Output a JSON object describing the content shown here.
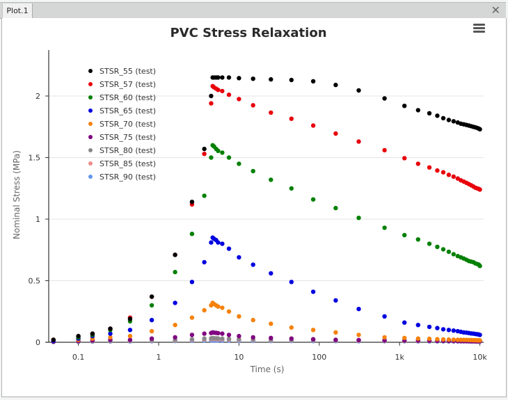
{
  "window": {
    "tab_label": "Plot.1",
    "close_icon": "close-icon",
    "menu_icon": "hamburger-menu-icon"
  },
  "chart_data": {
    "type": "scatter",
    "title": "PVC Stress Relaxation",
    "xlabel": "Time (s)",
    "ylabel": "Nominal Stress (MPa)",
    "xscale": "log",
    "xlim": [
      0.045,
      11000
    ],
    "ylim": [
      0,
      2.3
    ],
    "grid": "horizontal",
    "legend_position": "top-left",
    "x_ticks": [
      {
        "value": 0.1,
        "label": "0.1"
      },
      {
        "value": 1,
        "label": "1"
      },
      {
        "value": 10,
        "label": "10"
      },
      {
        "value": 100,
        "label": "100"
      },
      {
        "value": 1000,
        "label": "1k"
      },
      {
        "value": 10000,
        "label": "10k"
      }
    ],
    "y_ticks": [
      {
        "value": 0,
        "label": "0"
      },
      {
        "value": 0.5,
        "label": "0.5"
      },
      {
        "value": 1,
        "label": "1"
      },
      {
        "value": 1.5,
        "label": "1.5"
      },
      {
        "value": 2,
        "label": "2"
      }
    ],
    "x": [
      0.049,
      0.1,
      0.15,
      0.25,
      0.44,
      0.82,
      1.6,
      2.6,
      3.7,
      4.5,
      4.7,
      4.9,
      5.2,
      5.5,
      6.2,
      7.5,
      10,
      15,
      25,
      45,
      84,
      160,
      310,
      650,
      1150,
      1700,
      2350,
      2950,
      3500,
      4100,
      4700,
      5300,
      5800,
      6300,
      6800,
      7300,
      7800,
      8300,
      8800,
      9300,
      9700,
      10000
    ],
    "series": [
      {
        "name": "STSR_55 (test)",
        "color": "#000000",
        "values": [
          0.02,
          0.05,
          0.07,
          0.11,
          0.19,
          0.37,
          0.71,
          1.14,
          1.57,
          2.0,
          2.15,
          2.15,
          2.15,
          2.15,
          2.15,
          2.15,
          2.145,
          2.14,
          2.135,
          2.13,
          2.12,
          2.09,
          2.045,
          1.98,
          1.92,
          1.885,
          1.86,
          1.84,
          1.82,
          1.805,
          1.795,
          1.785,
          1.775,
          1.77,
          1.765,
          1.76,
          1.755,
          1.75,
          1.745,
          1.74,
          1.735,
          1.73
        ]
      },
      {
        "name": "STSR_57 (test)",
        "color": "#e8000b",
        "values": [
          0.02,
          0.05,
          0.07,
          0.11,
          0.2,
          0.37,
          0.71,
          1.12,
          1.53,
          1.94,
          2.08,
          2.07,
          2.06,
          2.05,
          2.04,
          2.01,
          1.975,
          1.925,
          1.865,
          1.815,
          1.76,
          1.695,
          1.63,
          1.56,
          1.495,
          1.45,
          1.42,
          1.395,
          1.38,
          1.36,
          1.345,
          1.33,
          1.315,
          1.305,
          1.295,
          1.285,
          1.275,
          1.265,
          1.255,
          1.25,
          1.245,
          1.24
        ]
      },
      {
        "name": "STSR_60 (test)",
        "color": "#008000",
        "values": [
          0.02,
          0.04,
          0.06,
          0.1,
          0.17,
          0.3,
          0.57,
          0.88,
          1.19,
          1.5,
          1.6,
          1.59,
          1.57,
          1.555,
          1.54,
          1.5,
          1.45,
          1.39,
          1.32,
          1.25,
          1.16,
          1.09,
          1.01,
          0.93,
          0.87,
          0.835,
          0.8,
          0.775,
          0.755,
          0.735,
          0.715,
          0.7,
          0.69,
          0.68,
          0.67,
          0.66,
          0.655,
          0.65,
          0.64,
          0.635,
          0.63,
          0.62
        ]
      },
      {
        "name": "STSR_65 (test)",
        "color": "#0000e0",
        "values": [
          0.01,
          0.03,
          0.05,
          0.07,
          0.1,
          0.18,
          0.32,
          0.49,
          0.65,
          0.81,
          0.85,
          0.84,
          0.83,
          0.81,
          0.8,
          0.76,
          0.69,
          0.63,
          0.56,
          0.49,
          0.41,
          0.34,
          0.27,
          0.21,
          0.16,
          0.14,
          0.125,
          0.115,
          0.105,
          0.1,
          0.095,
          0.09,
          0.085,
          0.08,
          0.078,
          0.075,
          0.072,
          0.07,
          0.067,
          0.065,
          0.063,
          0.06
        ]
      },
      {
        "name": "STSR_70 (test)",
        "color": "#f5820d",
        "values": [
          0.01,
          0.02,
          0.03,
          0.04,
          0.05,
          0.09,
          0.14,
          0.2,
          0.26,
          0.3,
          0.32,
          0.31,
          0.3,
          0.29,
          0.28,
          0.25,
          0.21,
          0.18,
          0.15,
          0.12,
          0.1,
          0.08,
          0.06,
          0.04,
          0.035,
          0.03,
          0.028,
          0.025,
          0.023,
          0.022,
          0.021,
          0.02,
          0.02,
          0.019,
          0.019,
          0.018,
          0.018,
          0.017,
          0.017,
          0.016,
          0.016,
          0.015
        ]
      },
      {
        "name": "STSR_75 (test)",
        "color": "#800080",
        "values": [
          0.005,
          0.01,
          0.015,
          0.02,
          0.02,
          0.03,
          0.04,
          0.06,
          0.07,
          0.075,
          0.08,
          0.078,
          0.076,
          0.074,
          0.07,
          0.06,
          0.05,
          0.04,
          0.035,
          0.03,
          0.025,
          0.02,
          0.018,
          0.016,
          0.015,
          0.014,
          0.013,
          0.012,
          0.012,
          0.011,
          0.011,
          0.01,
          0.01,
          0.01,
          0.01,
          0.009,
          0.009,
          0.009,
          0.009,
          0.008,
          0.008,
          0.008
        ]
      },
      {
        "name": "STSR_80 (test)",
        "color": "#888888",
        "values": [
          0.004,
          0.007,
          0.009,
          0.01,
          0.012,
          0.015,
          0.02,
          0.025,
          0.03,
          0.032,
          0.034,
          0.033,
          0.032,
          0.031,
          0.03,
          0.028,
          0.025,
          0.022,
          0.02,
          0.018,
          0.016,
          0.015,
          0.014,
          0.013,
          0.012,
          0.012,
          0.011,
          0.011,
          0.01,
          0.01,
          0.01,
          0.01,
          0.009,
          0.009,
          0.009,
          0.009,
          0.009,
          0.008,
          0.008,
          0.008,
          0.008,
          0.008
        ]
      },
      {
        "name": "STSR_85 (test)",
        "color": "#f08c8c",
        "values": [
          0.003,
          0.006,
          0.008,
          0.009,
          0.01,
          0.012,
          0.016,
          0.02,
          0.024,
          0.026,
          0.028,
          0.027,
          0.026,
          0.025,
          0.024,
          0.022,
          0.02,
          0.018,
          0.016,
          0.015,
          0.014,
          0.013,
          0.012,
          0.011,
          0.011,
          0.01,
          0.01,
          0.01,
          0.009,
          0.009,
          0.009,
          0.009,
          0.008,
          0.008,
          0.008,
          0.008,
          0.008,
          0.007,
          0.007,
          0.007,
          0.007,
          0.007
        ]
      },
      {
        "name": "STSR_90 (test)",
        "color": "#6495ed",
        "values": [
          0.002,
          0.004,
          0.005,
          0.006,
          0.007,
          0.008,
          0.01,
          0.012,
          0.014,
          0.015,
          0.016,
          0.016,
          0.015,
          0.015,
          0.014,
          0.013,
          0.012,
          0.011,
          0.01,
          0.01,
          0.009,
          0.009,
          0.008,
          0.008,
          0.008,
          0.007,
          0.007,
          0.007,
          0.007,
          0.006,
          0.006,
          0.006,
          0.006,
          0.006,
          0.006,
          0.006,
          0.005,
          0.005,
          0.005,
          0.005,
          0.005,
          0.005
        ]
      }
    ]
  }
}
